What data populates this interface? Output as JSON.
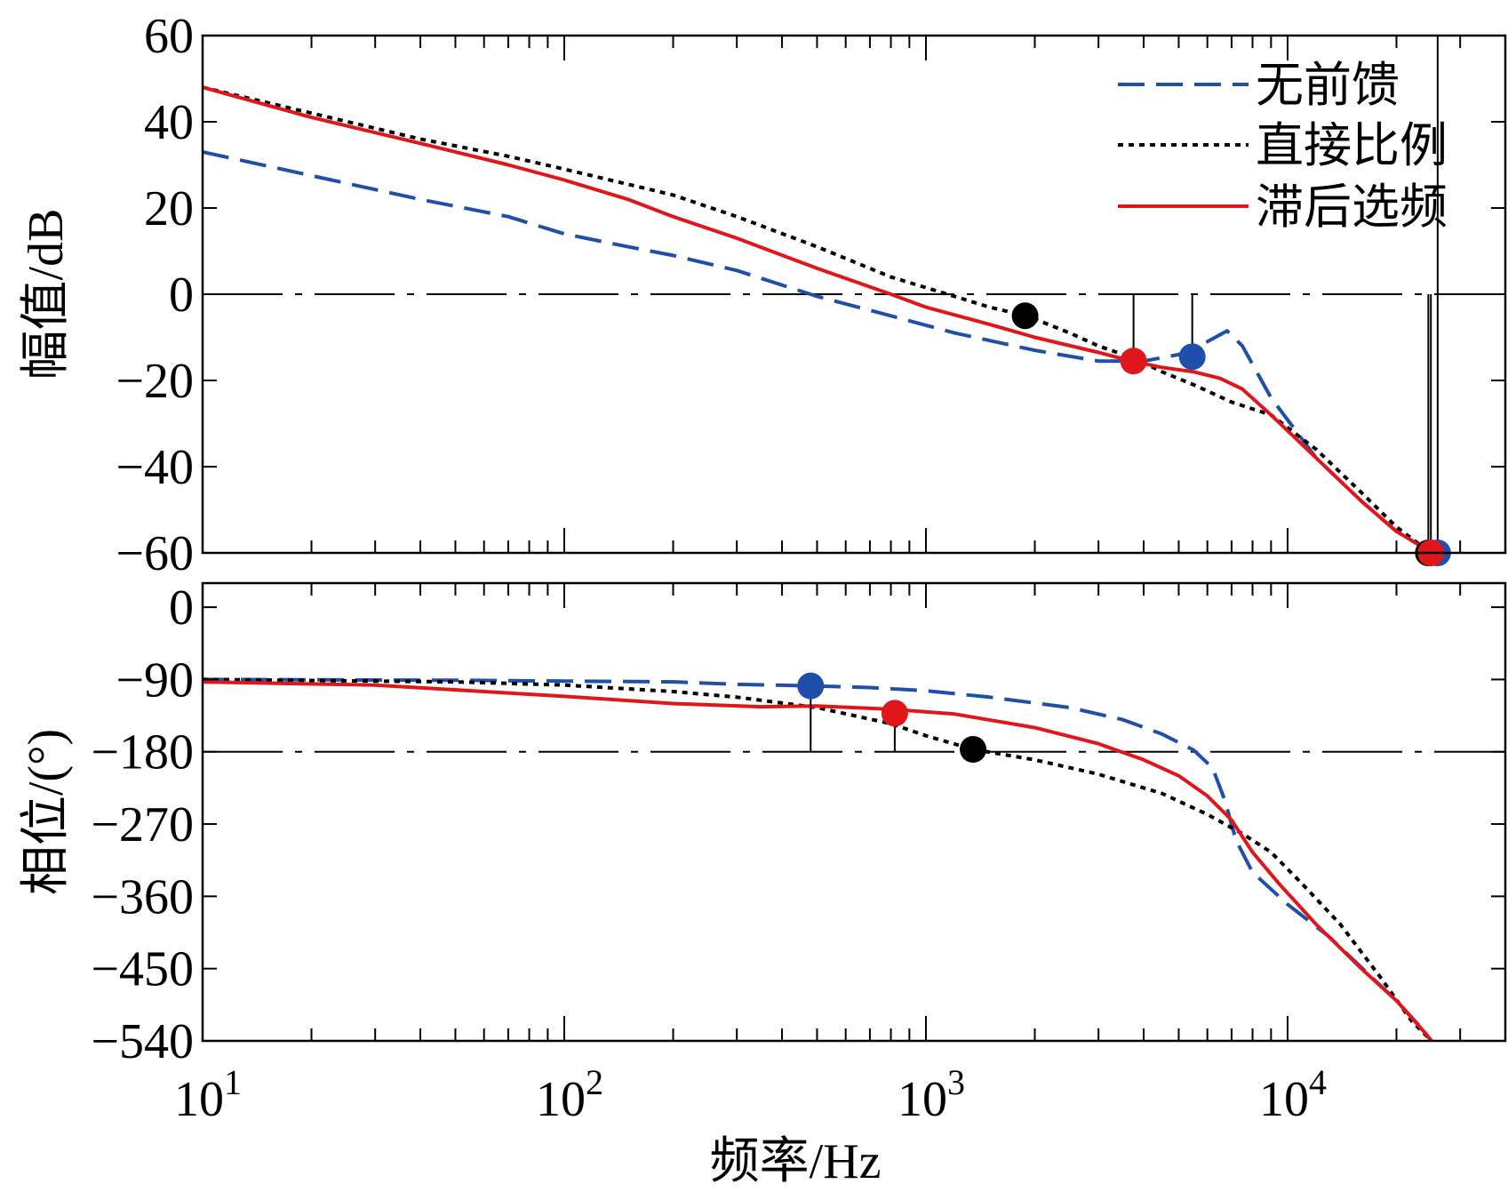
{
  "chart_data": {
    "type": "line",
    "colors": {
      "无前馈": "#1f4fa8",
      "直接比例": "#000000",
      "滞后选频": "#e0161b"
    },
    "legend_placement": "top-right",
    "xlabel": "频率/Hz",
    "x_scale": "log",
    "xlim": [
      10,
      40000
    ],
    "x_tick_labels": [
      {
        "value": 10,
        "base": "10",
        "exp": "1"
      },
      {
        "value": 100,
        "base": "10",
        "exp": "2"
      },
      {
        "value": 1000,
        "base": "10",
        "exp": "3"
      },
      {
        "value": 10000,
        "base": "10",
        "exp": "4"
      }
    ],
    "panels": [
      {
        "ylabel": "幅值/dB",
        "ylim": [
          -60,
          60
        ],
        "yticks": [
          60,
          40,
          20,
          0,
          -20,
          -40,
          -60
        ],
        "y_tick_labels": [
          "60",
          "40",
          "20",
          "0",
          "−20",
          "−40",
          "−60"
        ],
        "reference_line": 0,
        "series": [
          {
            "name": "无前馈",
            "style": "dashed",
            "x": [
              10,
              20,
              40,
              70,
              100,
              150,
              200,
              300,
              500,
              800,
              1200,
              2000,
              3000,
              4000,
              5000,
              6000,
              6800,
              7500,
              9000,
              12000,
              16000,
              20000,
              24000,
              26000
            ],
            "y": [
              33,
              27.5,
              22,
              18,
              14,
              11,
              9,
              5.5,
              -0.5,
              -5,
              -9,
              -13,
              -15.5,
              -15.5,
              -14,
              -11,
              -8.5,
              -12,
              -24,
              -38,
              -48,
              -55,
              -59,
              -60
            ]
          },
          {
            "name": "直接比例",
            "style": "dotted",
            "x": [
              10,
              20,
              40,
              70,
              100,
              200,
              300,
              500,
              800,
              1200,
              1500,
              1900,
              2500,
              3000,
              3800,
              4500,
              5500,
              7000,
              9000,
              12000,
              16000,
              20000,
              24000,
              25000
            ],
            "y": [
              48,
              42,
              36,
              32,
              29,
              23,
              18,
              11,
              4,
              -0.5,
              -3,
              -5,
              -9,
              -12,
              -15,
              -18,
              -21,
              -25,
              -28,
              -36,
              -46,
              -54,
              -59,
              -60
            ]
          },
          {
            "name": "滞后选频",
            "style": "solid",
            "x": [
              10,
              20,
              40,
              70,
              100,
              150,
              200,
              300,
              500,
              800,
              1000,
              1500,
              2000,
              3000,
              3700,
              4500,
              5500,
              6500,
              7500,
              9000,
              12000,
              16000,
              20000,
              24000,
              25000
            ],
            "y": [
              48,
              41,
              35,
              30,
              26.5,
              22,
              18,
              13,
              6,
              0,
              -3,
              -7,
              -10,
              -13.5,
              -15.5,
              -17,
              -18,
              -19.5,
              -22,
              -28,
              -38,
              -48,
              -55,
              -59,
              -60
            ]
          }
        ],
        "markers": [
          {
            "series": "直接比例",
            "x": 1880,
            "y": -5,
            "stem_to": null
          },
          {
            "series": "滞后选频",
            "x": 3750,
            "y": -15.5,
            "stem_to": 0
          },
          {
            "series": "无前馈",
            "x": 5450,
            "y": -14.5,
            "stem_to": 0
          },
          {
            "series": "直接比例",
            "x": 24500,
            "y": -60,
            "stem_to": 0
          },
          {
            "series": "无前馈",
            "x": 26000,
            "y": -60,
            "stem_to": 60
          },
          {
            "series": "滞后选频",
            "x": 24900,
            "y": -60,
            "stem_to": 0
          }
        ]
      },
      {
        "ylabel": "相位/(°)",
        "ylim": [
          -540,
          30
        ],
        "yticks": [
          0,
          -90,
          -180,
          -270,
          -360,
          -450,
          -540
        ],
        "y_tick_labels": [
          "0",
          "−90",
          "−180",
          "−270",
          "−360",
          "−450",
          "−540"
        ],
        "reference_line": -180,
        "series": [
          {
            "name": "无前馈",
            "style": "dashed",
            "x": [
              10,
              50,
              100,
              200,
              300,
              480,
              700,
              1000,
              1500,
              2500,
              3500,
              4500,
              5500,
              6200,
              6700,
              7200,
              8000,
              10000,
              13000,
              17000,
              20000,
              23000,
              25000
            ],
            "y": [
              -90,
              -91,
              -92,
              -93,
              -96,
              -98,
              -100,
              -104,
              -112,
              -125,
              -140,
              -158,
              -178,
              -200,
              -240,
              -290,
              -330,
              -370,
              -410,
              -460,
              -490,
              -520,
              -540
            ]
          },
          {
            "name": "直接比例",
            "style": "dotted",
            "x": [
              10,
              50,
              100,
              200,
              300,
              500,
              800,
              1000,
              1350,
              2000,
              3000,
              4500,
              6000,
              7500,
              9000,
              11000,
              14000,
              18000,
              22000,
              25000
            ],
            "y": [
              -90,
              -93,
              -97,
              -105,
              -112,
              -125,
              -145,
              -160,
              -177,
              -190,
              -208,
              -232,
              -258,
              -282,
              -305,
              -345,
              -395,
              -460,
              -515,
              -540
            ]
          },
          {
            "name": "滞后选频",
            "style": "solid",
            "x": [
              10,
              30,
              60,
              100,
              200,
              350,
              500,
              800,
              1200,
              2000,
              3000,
              4000,
              5000,
              6000,
              7000,
              8000,
              9500,
              12000,
              16000,
              20000,
              24000,
              25000
            ],
            "y": [
              -93,
              -97,
              -105,
              -111,
              -120,
              -124,
              -123,
              -127,
              -133,
              -150,
              -170,
              -190,
              -210,
              -235,
              -265,
              -305,
              -345,
              -395,
              -450,
              -490,
              -530,
              -540
            ]
          }
        ],
        "markers": [
          {
            "series": "无前馈",
            "x": 480,
            "y": -98,
            "stem_to": -180
          },
          {
            "series": "滞后选频",
            "x": 820,
            "y": -132,
            "stem_to": -180
          },
          {
            "series": "直接比例",
            "x": 1350,
            "y": -177,
            "stem_to": null
          }
        ]
      }
    ]
  }
}
